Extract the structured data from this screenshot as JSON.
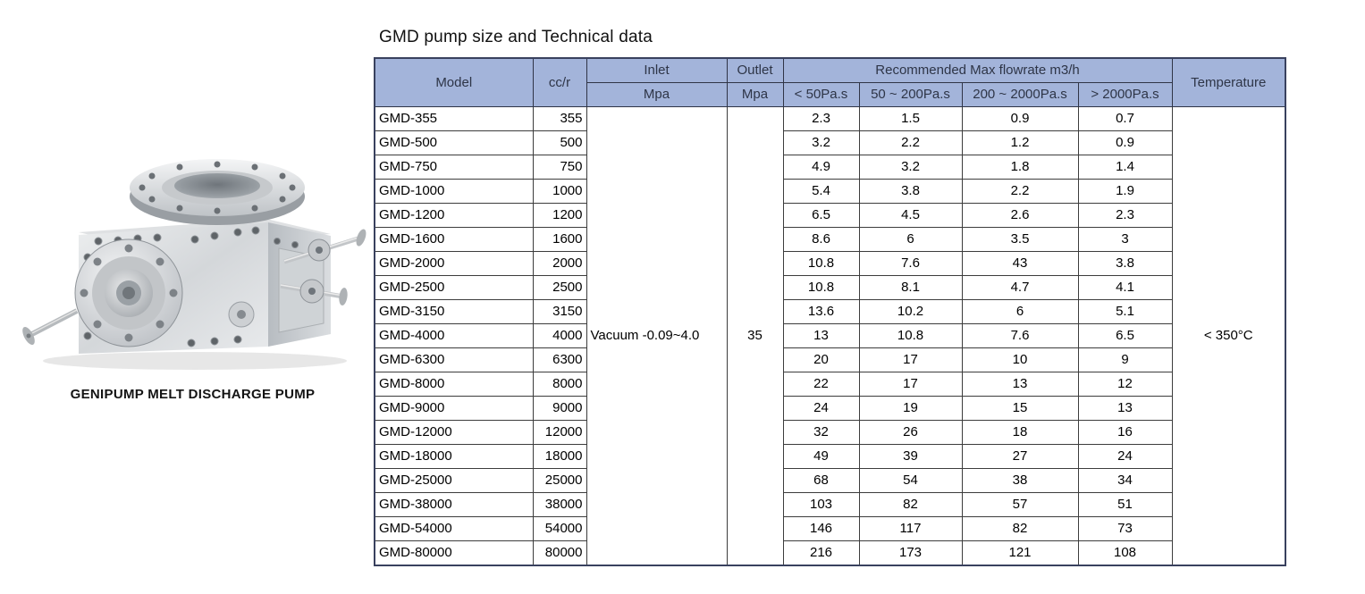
{
  "title": "GMD pump size and Technical data",
  "figure": {
    "caption": "GENIPUMP MELT DISCHARGE PUMP",
    "image_name": "genipump-melt-discharge-pump-render"
  },
  "colors": {
    "header_bg": "#a3b4da",
    "header_text": "#2e3547",
    "body_text": "#000000",
    "border": "#3c3c3c",
    "background": "#ffffff"
  },
  "table": {
    "header": {
      "model": "Model",
      "ccr": "cc/r",
      "inlet": "Inlet",
      "inlet_unit": "Mpa",
      "outlet": "Outlet",
      "outlet_unit": "Mpa",
      "flow_group": "Recommended Max flowrate m3/h",
      "flow_cols": [
        "< 50Pa.s",
        "50 ~ 200Pa.s",
        "200 ~ 2000Pa.s",
        "> 2000Pa.s"
      ],
      "temperature": "Temperature"
    },
    "merged": {
      "inlet_value": "Vacuum -0.09~4.0",
      "outlet_value": "35",
      "temperature_value": "< 350°C"
    },
    "rows": [
      {
        "model": "GMD-355",
        "ccr": "355",
        "flow": [
          "2.3",
          "1.5",
          "0.9",
          "0.7"
        ]
      },
      {
        "model": "GMD-500",
        "ccr": "500",
        "flow": [
          "3.2",
          "2.2",
          "1.2",
          "0.9"
        ]
      },
      {
        "model": "GMD-750",
        "ccr": "750",
        "flow": [
          "4.9",
          "3.2",
          "1.8",
          "1.4"
        ]
      },
      {
        "model": "GMD-1000",
        "ccr": "1000",
        "flow": [
          "5.4",
          "3.8",
          "2.2",
          "1.9"
        ]
      },
      {
        "model": "GMD-1200",
        "ccr": "1200",
        "flow": [
          "6.5",
          "4.5",
          "2.6",
          "2.3"
        ]
      },
      {
        "model": "GMD-1600",
        "ccr": "1600",
        "flow": [
          "8.6",
          "6",
          "3.5",
          "3"
        ]
      },
      {
        "model": "GMD-2000",
        "ccr": "2000",
        "flow": [
          "10.8",
          "7.6",
          "43",
          "3.8"
        ]
      },
      {
        "model": "GMD-2500",
        "ccr": "2500",
        "flow": [
          "10.8",
          "8.1",
          "4.7",
          "4.1"
        ]
      },
      {
        "model": "GMD-3150",
        "ccr": "3150",
        "flow": [
          "13.6",
          "10.2",
          "6",
          "5.1"
        ]
      },
      {
        "model": "GMD-4000",
        "ccr": "4000",
        "flow": [
          "13",
          "10.8",
          "7.6",
          "6.5"
        ]
      },
      {
        "model": "GMD-6300",
        "ccr": "6300",
        "flow": [
          "20",
          "17",
          "10",
          "9"
        ]
      },
      {
        "model": "GMD-8000",
        "ccr": "8000",
        "flow": [
          "22",
          "17",
          "13",
          "12"
        ]
      },
      {
        "model": "GMD-9000",
        "ccr": "9000",
        "flow": [
          "24",
          "19",
          "15",
          "13"
        ]
      },
      {
        "model": "GMD-12000",
        "ccr": "12000",
        "flow": [
          "32",
          "26",
          "18",
          "16"
        ]
      },
      {
        "model": "GMD-18000",
        "ccr": "18000",
        "flow": [
          "49",
          "39",
          "27",
          "24"
        ]
      },
      {
        "model": "GMD-25000",
        "ccr": "25000",
        "flow": [
          "68",
          "54",
          "38",
          "34"
        ]
      },
      {
        "model": "GMD-38000",
        "ccr": "38000",
        "flow": [
          "103",
          "82",
          "57",
          "51"
        ]
      },
      {
        "model": "GMD-54000",
        "ccr": "54000",
        "flow": [
          "146",
          "117",
          "82",
          "73"
        ]
      },
      {
        "model": "GMD-80000",
        "ccr": "80000",
        "flow": [
          "216",
          "173",
          "121",
          "108"
        ]
      }
    ]
  }
}
